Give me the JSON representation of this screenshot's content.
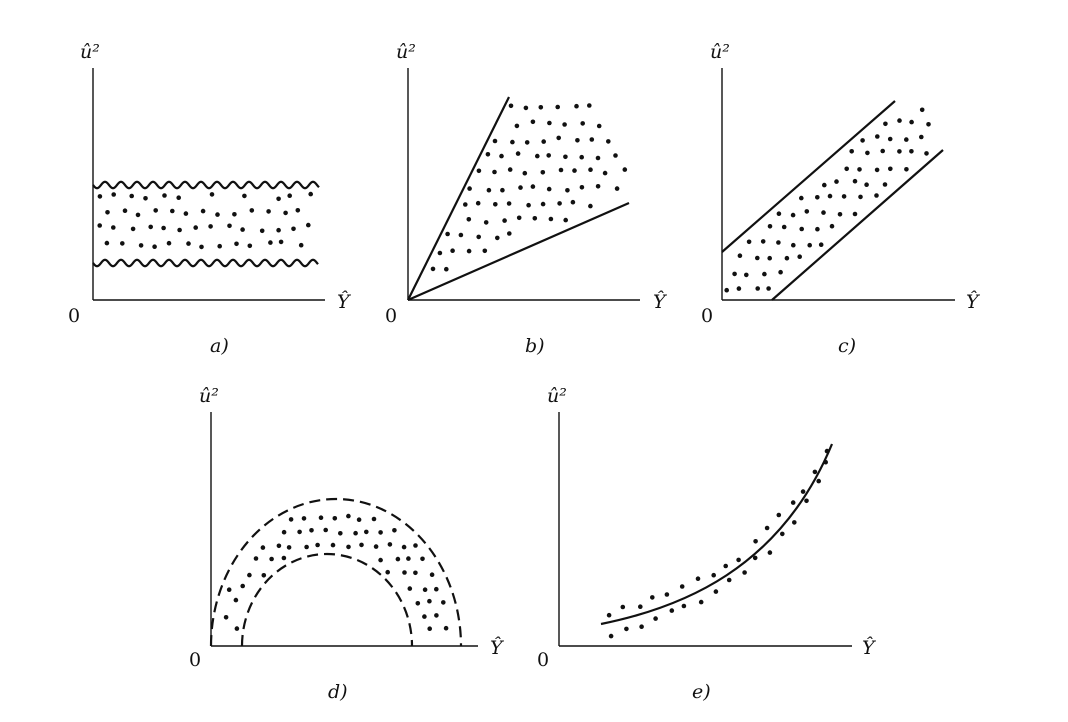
{
  "panels": [
    {
      "id": "a",
      "caption": "a)",
      "y_label": "û²",
      "x_label": "Ŷ",
      "origin_label": "0",
      "pattern": "constant band between wavy lines"
    },
    {
      "id": "b",
      "caption": "b)",
      "y_label": "û²",
      "x_label": "Ŷ",
      "origin_label": "0",
      "pattern": "widening wedge from origin"
    },
    {
      "id": "c",
      "caption": "c)",
      "y_label": "û²",
      "x_label": "Ŷ",
      "origin_label": "0",
      "pattern": "rising linear band"
    },
    {
      "id": "d",
      "caption": "d)",
      "y_label": "û²",
      "x_label": "Ŷ",
      "origin_label": "0",
      "pattern": "semicircular arch band with dashed bounds"
    },
    {
      "id": "e",
      "caption": "e)",
      "y_label": "û²",
      "x_label": "Ŷ",
      "origin_label": "0",
      "pattern": "convex rising curve with scattered points"
    }
  ],
  "colors": {
    "ink": "#111111",
    "background": "#ffffff"
  }
}
